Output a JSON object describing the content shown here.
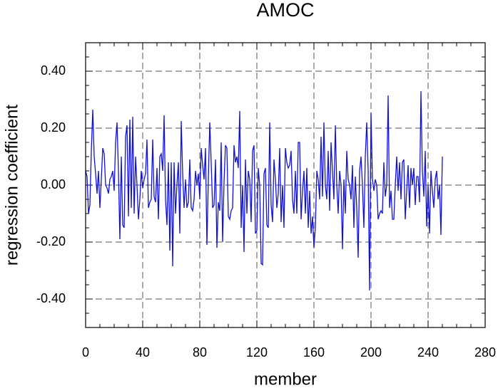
{
  "chart_data": {
    "type": "line",
    "title": "AMOC",
    "xlabel": "member",
    "ylabel": "regression coefficient",
    "xlim": [
      0,
      280
    ],
    "xticks": [
      0,
      40,
      80,
      120,
      160,
      200,
      240,
      280
    ],
    "ylim": [
      -0.5,
      0.5
    ],
    "yticks": [
      {
        "value": -0.4,
        "label": "-0.40"
      },
      {
        "value": -0.2,
        "label": "-0.20"
      },
      {
        "value": 0,
        "label": "0.00"
      },
      {
        "value": 0.2,
        "label": "0.20"
      },
      {
        "value": 0.4,
        "label": "0.40"
      }
    ],
    "grid": true,
    "x": [
      0,
      1,
      2,
      3,
      4,
      5,
      6,
      7,
      8,
      9,
      10,
      11,
      12,
      13,
      14,
      15,
      16,
      17,
      18,
      19,
      20,
      21,
      22,
      23,
      24,
      25,
      26,
      27,
      28,
      29,
      30,
      31,
      32,
      33,
      34,
      35,
      36,
      37,
      38,
      39,
      40,
      41,
      42,
      43,
      44,
      45,
      46,
      47,
      48,
      49,
      50,
      51,
      52,
      53,
      54,
      55,
      56,
      57,
      58,
      59,
      60,
      61,
      62,
      63,
      64,
      65,
      66,
      67,
      68,
      69,
      70,
      71,
      72,
      73,
      74,
      75,
      76,
      77,
      78,
      79,
      80,
      81,
      82,
      83,
      84,
      85,
      86,
      87,
      88,
      89,
      90,
      91,
      92,
      93,
      94,
      95,
      96,
      97,
      98,
      99,
      100,
      101,
      102,
      103,
      104,
      105,
      106,
      107,
      108,
      109,
      110,
      111,
      112,
      113,
      114,
      115,
      116,
      117,
      118,
      119,
      120,
      121,
      122,
      123,
      124,
      125,
      126,
      127,
      128,
      129,
      130,
      131,
      132,
      133,
      134,
      135,
      136,
      137,
      138,
      139,
      140,
      141,
      142,
      143,
      144,
      145,
      146,
      147,
      148,
      149,
      150,
      151,
      152,
      153,
      154,
      155,
      156,
      157,
      158,
      159,
      160,
      161,
      162,
      163,
      164,
      165,
      166,
      167,
      168,
      169,
      170,
      171,
      172,
      173,
      174,
      175,
      176,
      177,
      178,
      179,
      180,
      181,
      182,
      183,
      184,
      185,
      186,
      187,
      188,
      189,
      190,
      191,
      192,
      193,
      194,
      195,
      196,
      197,
      198,
      199,
      200,
      201,
      202,
      203,
      204,
      205,
      206,
      207,
      208,
      209,
      210,
      211,
      212,
      213,
      214,
      215,
      216,
      217,
      218,
      219,
      220,
      221,
      222,
      223,
      224,
      225,
      226,
      227,
      228,
      229,
      230,
      231,
      232,
      233,
      234,
      235,
      236,
      237,
      238,
      239,
      240,
      241,
      242,
      243,
      244,
      245,
      246,
      247,
      248,
      249,
      250
    ],
    "series": [
      {
        "color": "#1010e0",
        "values": [
          0.05,
          0.03,
          -0.1,
          -0.07,
          0.12,
          0.265,
          0.1,
          0.04,
          -0.03,
          0.05,
          -0.08,
          0.02,
          0.13,
          0.11,
          0.0,
          -0.01,
          -0.03,
          0.02,
          0.03,
          0.05,
          -0.02,
          0.15,
          0.22,
          0.05,
          -0.19,
          0.1,
          -0.14,
          -0.15,
          0.17,
          0.21,
          -0.11,
          0.23,
          -0.08,
          0.24,
          -0.1,
          0.1,
          0.0,
          -0.12,
          -0.05,
          0.05,
          -0.01,
          0.02,
          0.04,
          0.16,
          -0.08,
          -0.06,
          -0.05,
          0.16,
          -0.04,
          -0.06,
          0.06,
          -0.12,
          0.1,
          0.11,
          0.05,
          0.245,
          -0.05,
          -0.14,
          0.08,
          -0.23,
          0.08,
          -0.285,
          0.08,
          -0.1,
          0.0,
          0.08,
          -0.17,
          0.225,
          0.04,
          -0.08,
          0.02,
          -0.08,
          -0.06,
          0.09,
          -0.08,
          -0.09,
          -0.05,
          0.05,
          0.0,
          0.04,
          -0.05,
          0.13,
          0.07,
          0.02,
          0.13,
          -0.21,
          0.02,
          0.22,
          0.08,
          -0.08,
          -0.07,
          0.09,
          -0.22,
          -0.06,
          -0.09,
          0.15,
          -0.2,
          0.01,
          0.14,
          0.13,
          -0.11,
          -0.12,
          -0.09,
          -0.08,
          0.14,
          0.08,
          0.1,
          0.06,
          0.26,
          -0.15,
          0.0,
          -0.235,
          0.09,
          -0.1,
          0.05,
          0.02,
          -0.13,
          0.12,
          0.14,
          -0.17,
          -0.16,
          0.06,
          0.0,
          -0.275,
          -0.28,
          0.04,
          0.06,
          -0.14,
          -0.15,
          0.22,
          -0.07,
          -0.13,
          0.09,
          0.02,
          -0.08,
          -0.03,
          0.13,
          -0.13,
          0.0,
          -0.15,
          0.13,
          0.08,
          0.06,
          0.07,
          0.12,
          -0.05,
          -0.1,
          0.05,
          -0.1,
          0.15,
          0.15,
          -0.12,
          -0.02,
          0.05,
          -0.1,
          0.06,
          -0.15,
          -0.02,
          -0.17,
          -0.11,
          -0.22,
          -0.15,
          0.05,
          0.02,
          -0.05,
          0.17,
          -0.04,
          0.22,
          0.0,
          -0.05,
          0.12,
          -0.09,
          0.15,
          0.05,
          -0.05,
          0.21,
          0.0,
          -0.1,
          0.05,
          0.0,
          -0.225,
          0.02,
          -0.1,
          0.12,
          0.02,
          0.0,
          -0.05,
          0.07,
          -0.15,
          0.03,
          -0.08,
          -0.255,
          0.05,
          0.1,
          0.0,
          -0.15,
          0.1,
          0.22,
          0.05,
          -0.37,
          0.255,
          0.02,
          -0.02,
          0.02,
          0.0,
          -0.12,
          -0.1,
          -0.09,
          -0.1,
          0.08,
          -0.04,
          0.0,
          0.315,
          -0.08,
          -0.02,
          -0.12,
          -0.12,
          0.0,
          0.1,
          -0.02,
          0.08,
          -0.05,
          0.08,
          0.09,
          -0.12,
          -0.02,
          0.07,
          -0.08,
          0.06,
          0.0,
          0.06,
          -0.07,
          0.03,
          0.03,
          -0.06,
          0.33,
          0.05,
          -0.04,
          0.12,
          -0.145,
          0.0,
          -0.17,
          0.05,
          -0.02,
          -0.08,
          0.02,
          0.05,
          -0.05,
          0.0,
          -0.175,
          0.1
        ]
      }
    ]
  }
}
